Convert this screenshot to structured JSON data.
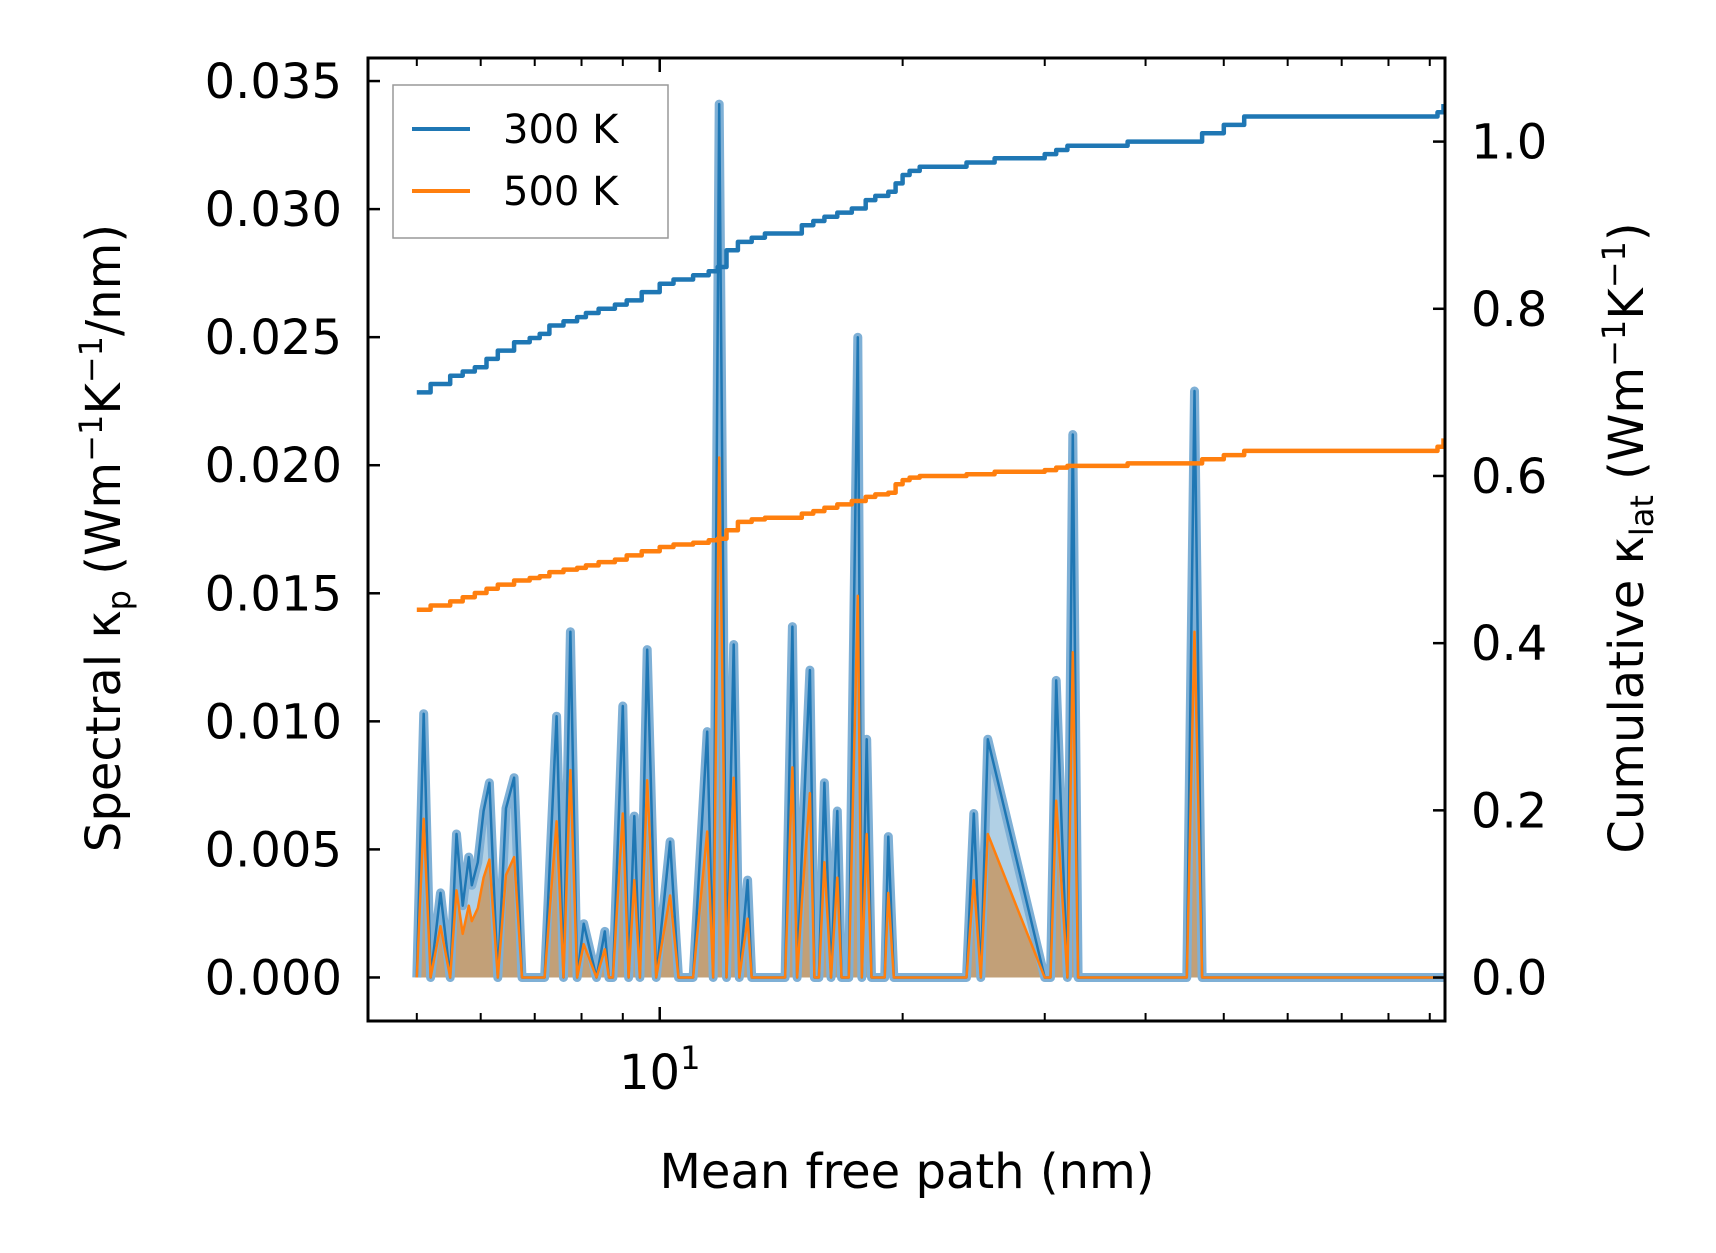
{
  "chart_data": {
    "type": "line",
    "xscale": "log",
    "xlabel": "Mean free path (nm)",
    "xlim": [
      4.35,
      94
    ],
    "x_major_tick": {
      "value": 10,
      "label_base": "10",
      "label_exp": "1"
    },
    "x_minor_ticks": [
      5,
      6,
      7,
      8,
      9,
      20,
      30,
      40,
      50,
      60,
      70,
      80,
      90
    ],
    "ylabel_left": {
      "prefix": "Spectral κ",
      "sub": "p",
      "unit_open": " (Wm",
      "sup1": "−1",
      "mid": "K",
      "sup2": "−1",
      "unit_close": "/nm)"
    },
    "ylabel_right": {
      "prefix": "Cumulative κ",
      "sub": "lat",
      "unit_open": " (Wm",
      "sup1": "−1",
      "mid": "K",
      "sup2": "−1",
      "unit_close": ")"
    },
    "ylim_left": [
      -0.0017,
      0.0359
    ],
    "ylim_right": [
      -0.052,
      1.1
    ],
    "yticks_left": [
      "0.000",
      "0.005",
      "0.010",
      "0.015",
      "0.020",
      "0.025",
      "0.030",
      "0.035"
    ],
    "yticks_right": [
      "0.0",
      "0.2",
      "0.4",
      "0.6",
      "0.8",
      "1.0"
    ],
    "legend": {
      "position": "top-left",
      "entries": [
        "300 K",
        "500 K"
      ]
    },
    "colors": {
      "s300": "#1f77b4",
      "s500": "#ff7f0e",
      "fill": "#c49a6c",
      "band": "#7fb0d6"
    },
    "spectral": {
      "x": [
        5.0,
        5.1,
        5.2,
        5.35,
        5.5,
        5.6,
        5.7,
        5.8,
        5.85,
        5.95,
        6.05,
        6.15,
        6.3,
        6.45,
        6.6,
        6.75,
        6.9,
        7.2,
        7.45,
        7.6,
        7.75,
        7.9,
        8.05,
        8.35,
        8.55,
        8.65,
        8.75,
        9.0,
        9.15,
        9.3,
        9.45,
        9.65,
        9.9,
        10.3,
        10.55,
        11.0,
        11.45,
        11.65,
        11.85,
        12.1,
        12.35,
        12.55,
        12.85,
        13.0,
        13.2,
        14.3,
        14.6,
        14.8,
        15.0,
        15.35,
        15.55,
        15.75,
        16.0,
        16.3,
        16.6,
        16.8,
        17.15,
        17.6,
        17.8,
        18.05,
        18.3,
        18.75,
        19.0,
        19.2,
        19.5,
        19.8,
        20.05,
        20.3,
        20.55,
        20.8,
        21.1,
        22.5,
        24.0,
        24.5,
        25.0,
        25.5,
        30.0,
        30.5,
        31.0,
        32.0,
        32.5,
        33.0,
        34.0,
        45.0,
        46.0,
        47.0,
        52.5,
        53.5,
        54.5,
        92.0,
        93.0,
        93.6
      ],
      "y300": [
        0,
        0.0103,
        0,
        0.0033,
        0,
        0.0056,
        0.0028,
        0.0047,
        0.0036,
        0.0045,
        0.0065,
        0.0076,
        0,
        0.0066,
        0.0078,
        0,
        0,
        0,
        0.0102,
        0,
        0.0135,
        0,
        0.0021,
        0,
        0.0018,
        0,
        0,
        0.0106,
        0,
        0.0063,
        0,
        0.0128,
        0,
        0.0053,
        0,
        0,
        0.0096,
        0,
        0.0341,
        0,
        0.013,
        0,
        0.0038,
        0,
        0,
        0,
        0.0137,
        0,
        0.0048,
        0.012,
        0,
        0,
        0.0076,
        0,
        0.0065,
        0,
        0,
        0.025,
        0,
        0.0093,
        0,
        0,
        0,
        0.0055,
        0,
        0,
        0,
        0,
        0,
        0,
        0,
        0,
        0,
        0.0064,
        0,
        0.0093,
        0,
        0,
        0.0116,
        0,
        0.0212,
        0,
        0,
        0,
        0.0229,
        0,
        0,
        0,
        0,
        0,
        0,
        0
      ],
      "y500": [
        0,
        0.0062,
        0,
        0.002,
        0,
        0.0034,
        0.0017,
        0.0028,
        0.0022,
        0.0027,
        0.0039,
        0.0046,
        0,
        0.004,
        0.0047,
        0,
        0,
        0,
        0.0061,
        0,
        0.0081,
        0,
        0.0013,
        0,
        0.0011,
        0,
        0,
        0.0064,
        0,
        0.0038,
        0,
        0.0077,
        0,
        0.0032,
        0,
        0,
        0.0057,
        0,
        0.0203,
        0,
        0.0078,
        0,
        0.0023,
        0,
        0,
        0,
        0.0082,
        0,
        0.0029,
        0.0072,
        0,
        0,
        0.0045,
        0,
        0.0039,
        0,
        0,
        0.0149,
        0,
        0.0056,
        0,
        0,
        0,
        0.0033,
        0,
        0,
        0,
        0,
        0,
        0,
        0,
        0,
        0,
        0.0038,
        0,
        0.0056,
        0,
        0,
        0.0069,
        0,
        0.0127,
        0,
        0,
        0,
        0.0135,
        0,
        0,
        0,
        0,
        0,
        0,
        0
      ]
    },
    "cumulative": {
      "x": [
        5.0,
        5.2,
        5.5,
        5.7,
        5.9,
        6.1,
        6.3,
        6.6,
        6.9,
        7.1,
        7.3,
        7.6,
        7.9,
        8.1,
        8.4,
        8.8,
        9.1,
        9.5,
        10.0,
        10.4,
        11.0,
        11.5,
        11.8,
        12.1,
        12.5,
        13.0,
        13.5,
        14.5,
        15.0,
        15.5,
        16.0,
        16.6,
        17.3,
        18.0,
        18.5,
        19.2,
        19.6,
        20.0,
        20.4,
        21.0,
        22.0,
        24.0,
        26.0,
        28.0,
        30.0,
        31.0,
        32.0,
        35.0,
        38.0,
        41.0,
        45.0,
        47.0,
        50.0,
        53.0,
        57.0,
        62.0,
        70.0,
        80.0,
        88.0,
        92.0,
        93.6
      ],
      "y300": [
        0.7,
        0.71,
        0.72,
        0.725,
        0.73,
        0.74,
        0.75,
        0.76,
        0.765,
        0.77,
        0.78,
        0.785,
        0.79,
        0.795,
        0.8,
        0.805,
        0.81,
        0.82,
        0.83,
        0.835,
        0.84,
        0.845,
        0.85,
        0.87,
        0.88,
        0.885,
        0.89,
        0.89,
        0.9,
        0.905,
        0.91,
        0.915,
        0.92,
        0.93,
        0.935,
        0.94,
        0.95,
        0.96,
        0.965,
        0.97,
        0.97,
        0.975,
        0.98,
        0.98,
        0.985,
        0.99,
        0.995,
        0.995,
        1.0,
        1.0,
        1.0,
        1.01,
        1.02,
        1.03,
        1.03,
        1.03,
        1.03,
        1.03,
        1.03,
        1.035,
        1.045
      ],
      "y500": [
        0.44,
        0.445,
        0.45,
        0.455,
        0.46,
        0.465,
        0.47,
        0.475,
        0.478,
        0.48,
        0.485,
        0.488,
        0.49,
        0.493,
        0.497,
        0.5,
        0.505,
        0.51,
        0.515,
        0.518,
        0.52,
        0.523,
        0.525,
        0.535,
        0.545,
        0.548,
        0.55,
        0.55,
        0.555,
        0.558,
        0.562,
        0.566,
        0.57,
        0.575,
        0.578,
        0.58,
        0.59,
        0.595,
        0.598,
        0.6,
        0.6,
        0.602,
        0.605,
        0.605,
        0.607,
        0.61,
        0.612,
        0.612,
        0.615,
        0.615,
        0.615,
        0.62,
        0.625,
        0.63,
        0.63,
        0.63,
        0.63,
        0.63,
        0.63,
        0.635,
        0.645
      ]
    }
  }
}
